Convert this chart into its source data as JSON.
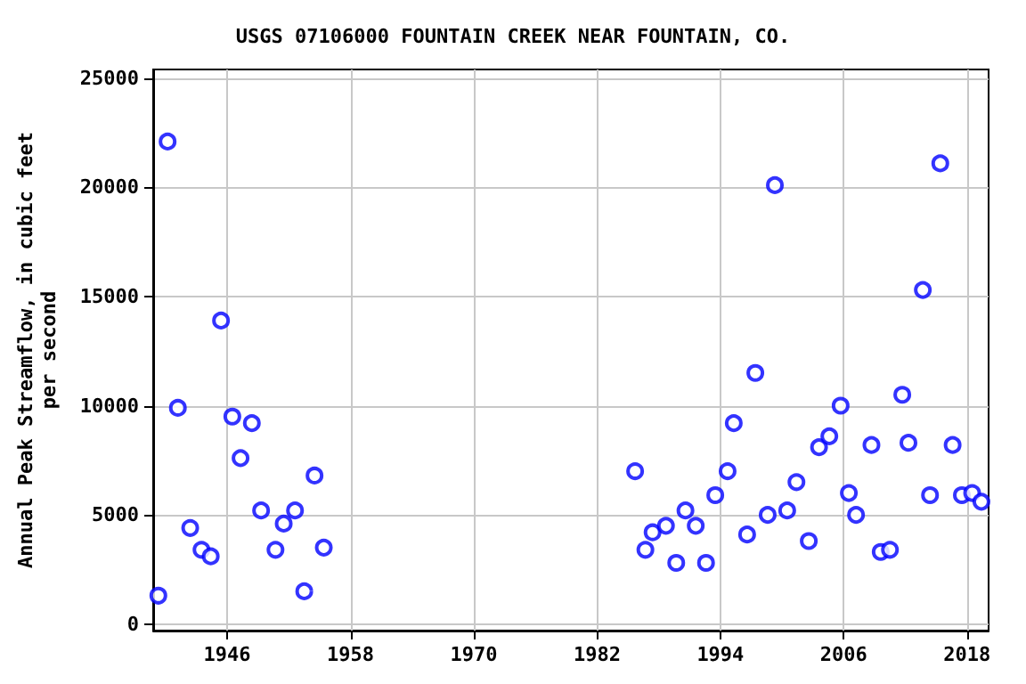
{
  "chart_data": {
    "type": "scatter",
    "title": "USGS 07106000 FOUNTAIN CREEK NEAR FOUNTAIN, CO.",
    "ylabel": "Annual Peak Streamflow, in cubic feet per second",
    "xlim": [
      1938.8,
      2020.1
    ],
    "xticks": [
      1946,
      1958,
      1970,
      1982,
      1994,
      2006,
      2018
    ],
    "ylim": [
      -300,
      25400
    ],
    "yticks": [
      0,
      5000,
      10000,
      15000,
      20000,
      25000
    ],
    "grid": true,
    "marker": "circle",
    "series": [
      {
        "color": "#0000ff",
        "x": [
          1939.3,
          1940.2,
          1941.2,
          1942.4,
          1943.5,
          1944.4,
          1945.4,
          1946.5,
          1947.3,
          1948.4,
          1949.3,
          1950.7,
          1951.5,
          1952.6,
          1953.5,
          1954.5,
          1955.4,
          1985.7,
          1986.7,
          1987.4,
          1988.7,
          1989.7,
          1990.6,
          1991.6,
          1992.6,
          1993.5,
          1994.7,
          1995.3,
          1996.6,
          1997.4,
          1998.6,
          1999.3,
          2000.5,
          2001.4,
          2002.6,
          2003.6,
          2004.6,
          2005.7,
          2006.5,
          2007.2,
          2008.7,
          2009.6,
          2010.5,
          2011.7,
          2012.3,
          2013.7,
          2014.4,
          2015.4,
          2016.6,
          2017.5,
          2018.5,
          2019.4
        ],
        "values": [
          1300,
          22100,
          9900,
          4400,
          3400,
          3100,
          13900,
          9500,
          7600,
          9200,
          5200,
          3400,
          4600,
          5200,
          1500,
          6800,
          3500,
          7000,
          3400,
          4200,
          4500,
          2800,
          5200,
          4500,
          2800,
          5900,
          7000,
          9200,
          4100,
          11500,
          5000,
          20100,
          5200,
          6500,
          3800,
          8100,
          8600,
          10000,
          6000,
          5000,
          8200,
          3300,
          3400,
          10500,
          8300,
          15300,
          5900,
          21100,
          8200,
          5900,
          6000,
          5600
        ]
      }
    ]
  }
}
